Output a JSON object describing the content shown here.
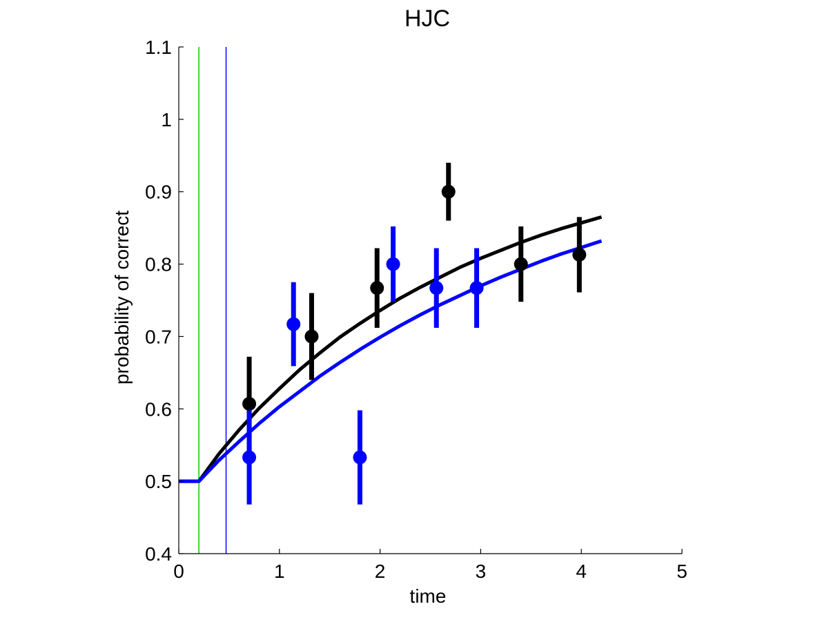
{
  "chart_data": {
    "type": "scatter",
    "title": "HJC",
    "xlabel": "time",
    "ylabel": "probability of correct",
    "xlim": [
      0,
      5
    ],
    "ylim": [
      0.4,
      1.1
    ],
    "xticks": [
      0,
      1,
      2,
      3,
      4,
      5
    ],
    "yticks": [
      0.4,
      0.5,
      0.6,
      0.7,
      0.8,
      0.9,
      1,
      1.1
    ],
    "xtick_labels": [
      "0",
      "1",
      "2",
      "3",
      "4",
      "5"
    ],
    "ytick_labels": [
      "0.4",
      "0.5",
      "0.6",
      "0.7",
      "0.8",
      "0.9",
      "1",
      "1.1"
    ],
    "grid": false,
    "vertical_lines": [
      {
        "x": 0.2,
        "color": "#00cc00"
      },
      {
        "x": 0.47,
        "color": "#0000ff"
      }
    ],
    "series": [
      {
        "color": "#000000",
        "points": [
          {
            "x": 0.7,
            "y": 0.607,
            "err": 0.065
          },
          {
            "x": 1.32,
            "y": 0.7,
            "err": 0.06
          },
          {
            "x": 1.97,
            "y": 0.767,
            "err": 0.055
          },
          {
            "x": 2.68,
            "y": 0.9,
            "err": 0.04
          },
          {
            "x": 3.4,
            "y": 0.8,
            "err": 0.052
          },
          {
            "x": 3.98,
            "y": 0.813,
            "err": 0.052
          }
        ],
        "fit_x": [
          0,
          0.2,
          0.4,
          0.6,
          0.8,
          1.0,
          1.2,
          1.4,
          1.6,
          1.8,
          2.0,
          2.2,
          2.4,
          2.6,
          2.8,
          3.0,
          3.2,
          3.4,
          3.6,
          3.8,
          4.0,
          4.2
        ],
        "fit_y": [
          0.5,
          0.5,
          0.538,
          0.571,
          0.601,
          0.628,
          0.654,
          0.677,
          0.699,
          0.718,
          0.736,
          0.753,
          0.768,
          0.782,
          0.796,
          0.808,
          0.819,
          0.83,
          0.84,
          0.849,
          0.857,
          0.865
        ]
      },
      {
        "color": "#0000ff",
        "points": [
          {
            "x": 0.7,
            "y": 0.533,
            "err": 0.065
          },
          {
            "x": 1.14,
            "y": 0.717,
            "err": 0.058
          },
          {
            "x": 1.8,
            "y": 0.533,
            "err": 0.065
          },
          {
            "x": 2.13,
            "y": 0.8,
            "err": 0.052
          },
          {
            "x": 2.56,
            "y": 0.767,
            "err": 0.055
          },
          {
            "x": 2.96,
            "y": 0.767,
            "err": 0.055
          }
        ],
        "fit_x": [
          0,
          0.2,
          0.4,
          0.6,
          0.8,
          1.0,
          1.2,
          1.4,
          1.6,
          1.8,
          2.0,
          2.2,
          2.4,
          2.6,
          2.8,
          3.0,
          3.2,
          3.4,
          3.6,
          3.8,
          4.0,
          4.2
        ],
        "fit_y": [
          0.5,
          0.5,
          0.529,
          0.555,
          0.58,
          0.603,
          0.624,
          0.645,
          0.664,
          0.682,
          0.699,
          0.715,
          0.73,
          0.744,
          0.757,
          0.77,
          0.782,
          0.793,
          0.804,
          0.814,
          0.823,
          0.832
        ]
      }
    ]
  }
}
